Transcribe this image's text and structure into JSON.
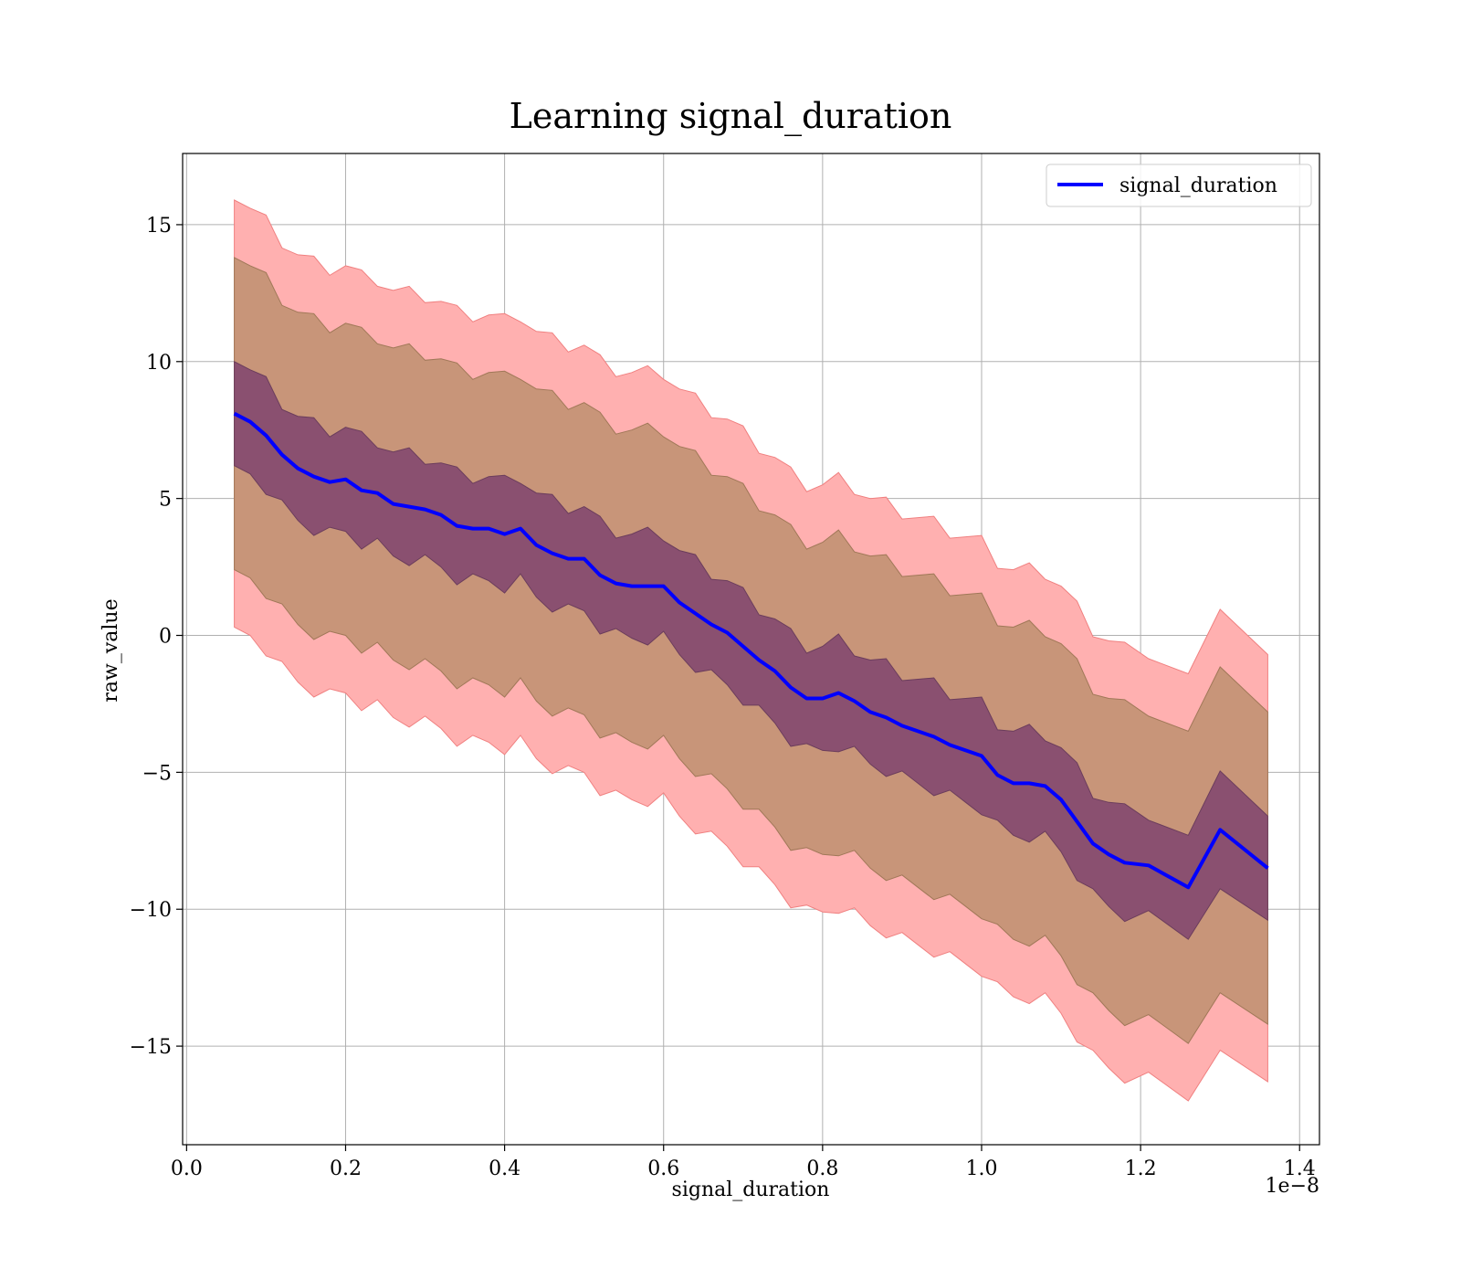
{
  "chart_data": {
    "type": "line",
    "title": "Learning signal_duration",
    "xlabel": "signal_duration",
    "ylabel": "raw_value",
    "x_offset_text": "1e−8",
    "x_tick_values": [
      0.0,
      0.2,
      0.4,
      0.6,
      0.8,
      1.0,
      1.2,
      1.4
    ],
    "x_tick_labels": [
      "0.0",
      "0.2",
      "0.4",
      "0.6",
      "0.8",
      "1.0",
      "1.2",
      "1.4"
    ],
    "y_tick_values": [
      15,
      10,
      5,
      0,
      -5,
      -10,
      -15
    ],
    "y_tick_labels": [
      "15",
      "10",
      "5",
      "0",
      "−5",
      "−10",
      "−15"
    ],
    "xlim": [
      -0.005,
      1.425
    ],
    "ylim": [
      -18.6,
      17.6
    ],
    "grid": true,
    "legend_position": "top-right",
    "series": [
      {
        "name": "signal_duration",
        "color": "#0000ff",
        "x": [
          0.06,
          0.08,
          0.1,
          0.12,
          0.14,
          0.16,
          0.18,
          0.2,
          0.22,
          0.24,
          0.26,
          0.28,
          0.3,
          0.32,
          0.34,
          0.36,
          0.38,
          0.4,
          0.42,
          0.44,
          0.46,
          0.48,
          0.5,
          0.52,
          0.54,
          0.56,
          0.58,
          0.6,
          0.62,
          0.64,
          0.66,
          0.68,
          0.7,
          0.72,
          0.74,
          0.76,
          0.78,
          0.8,
          0.82,
          0.84,
          0.86,
          0.88,
          0.9,
          0.92,
          0.94,
          0.96,
          0.98,
          1.0,
          1.02,
          1.04,
          1.06,
          1.08,
          1.1,
          1.12,
          1.14,
          1.16,
          1.18,
          1.21,
          1.26,
          1.3,
          1.36
        ],
        "y": [
          8.1,
          7.8,
          7.3,
          6.6,
          6.1,
          5.8,
          5.6,
          5.7,
          5.3,
          5.2,
          4.8,
          4.7,
          4.6,
          4.4,
          4.0,
          3.9,
          3.9,
          3.7,
          3.9,
          3.3,
          3.0,
          2.8,
          2.8,
          2.2,
          1.9,
          1.8,
          1.8,
          1.8,
          1.2,
          0.8,
          0.4,
          0.1,
          -0.4,
          -0.9,
          -1.3,
          -1.9,
          -2.3,
          -2.3,
          -2.1,
          -2.4,
          -2.8,
          -3.0,
          -3.3,
          -3.5,
          -3.7,
          -4.0,
          -4.2,
          -4.4,
          -5.1,
          -5.4,
          -5.4,
          -5.5,
          -6.0,
          -6.8,
          -7.6,
          -8.0,
          -8.3,
          -8.4,
          -9.2,
          -7.1,
          -8.5
        ],
        "band_inner_half_width": 1.9,
        "band_middle_half_width": 5.7,
        "band_outer_half_width": 7.8,
        "band_inner_color": "#8a5070",
        "band_middle_color": "#c89579",
        "band_outer_color": "#ffb0b0"
      }
    ]
  }
}
